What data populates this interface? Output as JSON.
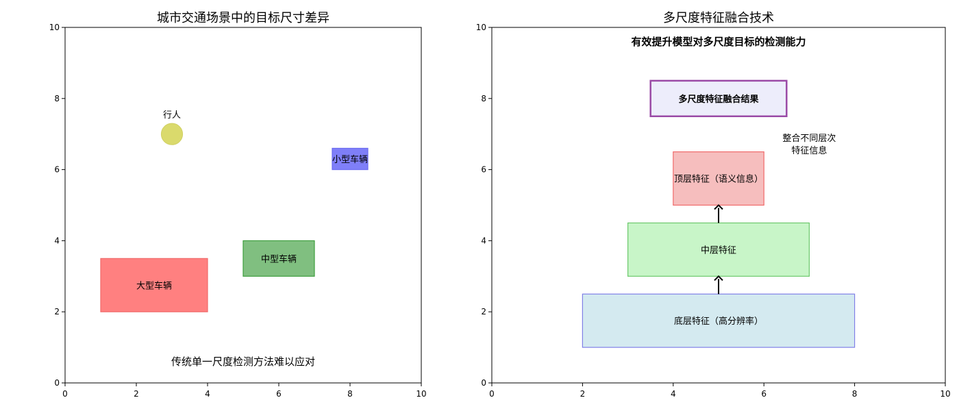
{
  "chart_data": [
    {
      "type": "diagram",
      "title": "城市交通场景中的目标尺寸差异",
      "xlim": [
        0,
        10
      ],
      "ylim": [
        0,
        10
      ],
      "xticks": [
        0,
        2,
        4,
        6,
        8,
        10
      ],
      "yticks": [
        0,
        2,
        4,
        6,
        8,
        10
      ],
      "objects": [
        {
          "shape": "circle",
          "label": "行人",
          "cx": 3,
          "cy": 7,
          "r": 0.3,
          "fill": "#d4d453",
          "stroke": "#c8c84a",
          "label_position": "above"
        },
        {
          "shape": "rect",
          "label": "小型车辆",
          "x": 7.5,
          "y": 6,
          "w": 1,
          "h": 0.6,
          "fill": "#7f7ff8",
          "stroke": "#6b6bf0"
        },
        {
          "shape": "rect",
          "label": "中型车辆",
          "x": 5,
          "y": 3,
          "w": 2,
          "h": 1,
          "fill": "#80bf80",
          "stroke": "#3f9f3f"
        },
        {
          "shape": "rect",
          "label": "大型车辆",
          "x": 1,
          "y": 2,
          "w": 3,
          "h": 1.5,
          "fill": "#ff8080",
          "stroke": "#f06a6a"
        }
      ],
      "annotations": [
        {
          "text": "传统单一尺度检测方法难以应对",
          "x": 5,
          "y": 0.6
        }
      ]
    },
    {
      "type": "diagram",
      "title": "多尺度特征融合技术",
      "xlim": [
        0,
        10
      ],
      "ylim": [
        0,
        10
      ],
      "xticks": [
        0,
        2,
        4,
        6,
        8,
        10
      ],
      "yticks": [
        0,
        2,
        4,
        6,
        8,
        10
      ],
      "objects": [
        {
          "shape": "rect",
          "label": "底层特征（高分辨率）",
          "x": 2,
          "y": 1,
          "w": 6,
          "h": 1.5,
          "fill": "#d4eaf0",
          "stroke": "#7f7fe6",
          "bold": false
        },
        {
          "shape": "rect",
          "label": "中层特征",
          "x": 3,
          "y": 3,
          "w": 4,
          "h": 1.5,
          "fill": "#c8f5c8",
          "stroke": "#6cc86c",
          "bold": false
        },
        {
          "shape": "rect",
          "label": "顶层特征（语义信息）",
          "x": 4,
          "y": 5,
          "w": 2,
          "h": 1.5,
          "fill": "#f6bebe",
          "stroke": "#f06a6a",
          "bold": false
        },
        {
          "shape": "rect",
          "label": "多尺度特征融合结果",
          "x": 3.5,
          "y": 7.5,
          "w": 3,
          "h": 1,
          "fill": "#ededfb",
          "stroke": "#9a4aa6",
          "bold": true
        }
      ],
      "arrows": [
        {
          "from": [
            5,
            2.5
          ],
          "to": [
            5,
            3
          ]
        },
        {
          "from": [
            5,
            4.5
          ],
          "to": [
            5,
            5
          ]
        }
      ],
      "annotations": [
        {
          "text": "有效提升模型对多尺度目标的检测能力",
          "x": 5,
          "y": 9.6,
          "bold": true
        },
        {
          "text": "整合不同层次",
          "x": 7,
          "y": 6.9,
          "bold": false
        },
        {
          "text": "特征信息",
          "x": 7,
          "y": 6.55,
          "bold": false
        }
      ]
    }
  ]
}
